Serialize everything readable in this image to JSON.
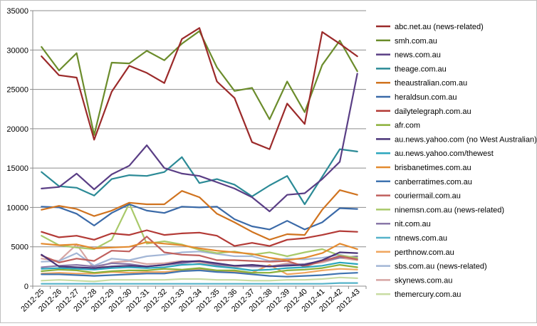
{
  "chart_data": {
    "type": "line",
    "title": "",
    "xlabel": "",
    "ylabel": "",
    "ylim": [
      0,
      35000
    ],
    "yticks": [
      0,
      5000,
      10000,
      15000,
      20000,
      25000,
      30000,
      35000
    ],
    "grid": "horizontal",
    "legend": "right",
    "categories": [
      "2012-25",
      "2012-26",
      "2012-27",
      "2012-28",
      "2012-29",
      "2012-30",
      "2012-31",
      "2012-32",
      "2012-33",
      "2012-34",
      "2012-35",
      "2012-36",
      "2012-37",
      "2012-38",
      "2012-39",
      "2012-40",
      "2012-41",
      "2012-42",
      "2012-43"
    ],
    "series": [
      {
        "name": "abc.net.au (news-related)",
        "color": "#9b2a2a",
        "values": [
          29200,
          26800,
          26500,
          18600,
          24700,
          28000,
          27100,
          25800,
          31400,
          32800,
          26000,
          23900,
          18300,
          17400,
          23200,
          20600,
          32300,
          30800,
          29200
        ]
      },
      {
        "name": "smh.com.au",
        "color": "#6b8c2b",
        "values": [
          30400,
          27400,
          29600,
          19200,
          28400,
          28300,
          29900,
          28700,
          30800,
          32400,
          27800,
          24800,
          25200,
          21200,
          26000,
          22100,
          28100,
          31200,
          27300
        ]
      },
      {
        "name": "news.com.au",
        "color": "#5a3e85",
        "values": [
          12400,
          12600,
          14300,
          12300,
          14200,
          15300,
          17900,
          15000,
          14300,
          14000,
          13200,
          12400,
          11300,
          9500,
          11600,
          11800,
          13600,
          15800,
          27000
        ]
      },
      {
        "name": "theage.com.au",
        "color": "#2b8a96",
        "values": [
          14500,
          12700,
          12500,
          11500,
          13600,
          14100,
          14000,
          14500,
          16400,
          13100,
          13600,
          12900,
          11400,
          12800,
          14000,
          10400,
          13900,
          17400,
          17100
        ]
      },
      {
        "name": "theaustralian.com.au",
        "color": "#d0731f",
        "values": [
          9700,
          10200,
          9800,
          8900,
          9600,
          10600,
          10400,
          10400,
          12100,
          11300,
          9200,
          8100,
          6900,
          5900,
          6600,
          6500,
          9700,
          12200,
          11600
        ]
      },
      {
        "name": "heraldsun.com.au",
        "color": "#3b6aa8",
        "values": [
          10100,
          10000,
          9200,
          7700,
          9300,
          10400,
          9600,
          9300,
          10100,
          10000,
          10100,
          8500,
          7600,
          7200,
          8300,
          7200,
          8100,
          9900,
          9800
        ]
      },
      {
        "name": "dailytelegraph.com.au",
        "color": "#b33a36",
        "values": [
          6900,
          6200,
          6400,
          5900,
          6700,
          6500,
          7100,
          6500,
          6700,
          6800,
          6400,
          5100,
          5500,
          5100,
          5900,
          6100,
          6500,
          7000,
          6900
        ]
      },
      {
        "name": "afr.com",
        "color": "#8bb03a",
        "values": [
          1900,
          2100,
          2000,
          1700,
          1900,
          2000,
          2000,
          2200,
          2100,
          2300,
          2000,
          2000,
          1700,
          1700,
          2000,
          2100,
          2300,
          2700,
          2400
        ]
      },
      {
        "name": "au.news.yahoo.com (no West Australian)",
        "color": "#4a3478",
        "values": [
          4000,
          2500,
          2400,
          2300,
          2500,
          2600,
          2500,
          2700,
          3100,
          3200,
          2900,
          2600,
          2700,
          2500,
          2600,
          2700,
          3300,
          4300,
          4200
        ]
      },
      {
        "name": "au.news.yahoo.com/thewest",
        "color": "#2ba6bd",
        "values": [
          2200,
          2300,
          2200,
          2100,
          2300,
          2400,
          2300,
          2400,
          2700,
          2800,
          2500,
          2300,
          2000,
          2100,
          2300,
          2400,
          2600,
          3000,
          2800
        ]
      },
      {
        "name": "brisbanetimes.com.au",
        "color": "#e38a2f",
        "values": [
          5400,
          5200,
          5300,
          4800,
          4900,
          5000,
          5600,
          5400,
          5200,
          4800,
          4500,
          4300,
          4100,
          3600,
          3300,
          3600,
          4200,
          5400,
          4700
        ]
      },
      {
        "name": "canberratimes.com.au",
        "color": "#3f73b0",
        "values": [
          1500,
          1500,
          1400,
          1300,
          1400,
          1500,
          1600,
          1600,
          1900,
          2000,
          1800,
          1700,
          1500,
          1300,
          1200,
          1300,
          1400,
          1600,
          1700
        ]
      },
      {
        "name": "couriermail.com.au",
        "color": "#c0605d",
        "values": [
          3900,
          3000,
          3500,
          3200,
          4500,
          4400,
          6300,
          4300,
          4000,
          3900,
          3300,
          3300,
          3200,
          3100,
          3200,
          2500,
          3200,
          3800,
          3400
        ]
      },
      {
        "name": "ninemsn.com.au (news-related)",
        "color": "#a9c96a",
        "values": [
          6400,
          5200,
          4900,
          4700,
          5900,
          10500,
          5400,
          5700,
          5300,
          4600,
          4200,
          4400,
          4000,
          4300,
          3800,
          4300,
          4700,
          3900,
          3600
        ]
      },
      {
        "name": "nit.com.au",
        "color": "#8a78a8",
        "values": [
          2400,
          2600,
          2700,
          2500,
          2900,
          2800,
          2500,
          2700,
          2900,
          3200,
          2700,
          2600,
          2500,
          2500,
          2700,
          2800,
          3200,
          3600,
          3800
        ]
      },
      {
        "name": "ntnews.com.au",
        "color": "#55b3c9",
        "values": [
          300,
          300,
          300,
          300,
          300,
          300,
          300,
          300,
          300,
          300,
          300,
          300,
          300,
          300,
          300,
          300,
          300,
          400,
          400
        ]
      },
      {
        "name": "perthnow.com.au",
        "color": "#f0a65e",
        "values": [
          1600,
          1700,
          1600,
          1600,
          1800,
          1700,
          1800,
          1800,
          2000,
          2100,
          1900,
          1800,
          1700,
          2700,
          1500,
          1700,
          2000,
          2200,
          2100
        ]
      },
      {
        "name": "sbs.com.au (news-related)",
        "color": "#a3b6d6",
        "values": [
          3100,
          3200,
          4200,
          2600,
          3500,
          3300,
          3800,
          4000,
          4300,
          4400,
          4100,
          3800,
          3800,
          3200,
          3500,
          3400,
          3600,
          4000,
          3500
        ]
      },
      {
        "name": "skynews.com.au",
        "color": "#d6a5a3",
        "values": [
          3500,
          3200,
          5300,
          2200,
          3000,
          3200,
          2800,
          2900,
          3200,
          3000,
          2600,
          2400,
          2700,
          2500,
          2900,
          2700,
          3000,
          3600,
          3300
        ]
      },
      {
        "name": "themercury.com.au",
        "color": "#c9dca3",
        "values": [
          700,
          800,
          700,
          600,
          800,
          800,
          800,
          800,
          900,
          900,
          800,
          800,
          700,
          700,
          800,
          800,
          900,
          1100,
          1000
        ]
      }
    ]
  }
}
